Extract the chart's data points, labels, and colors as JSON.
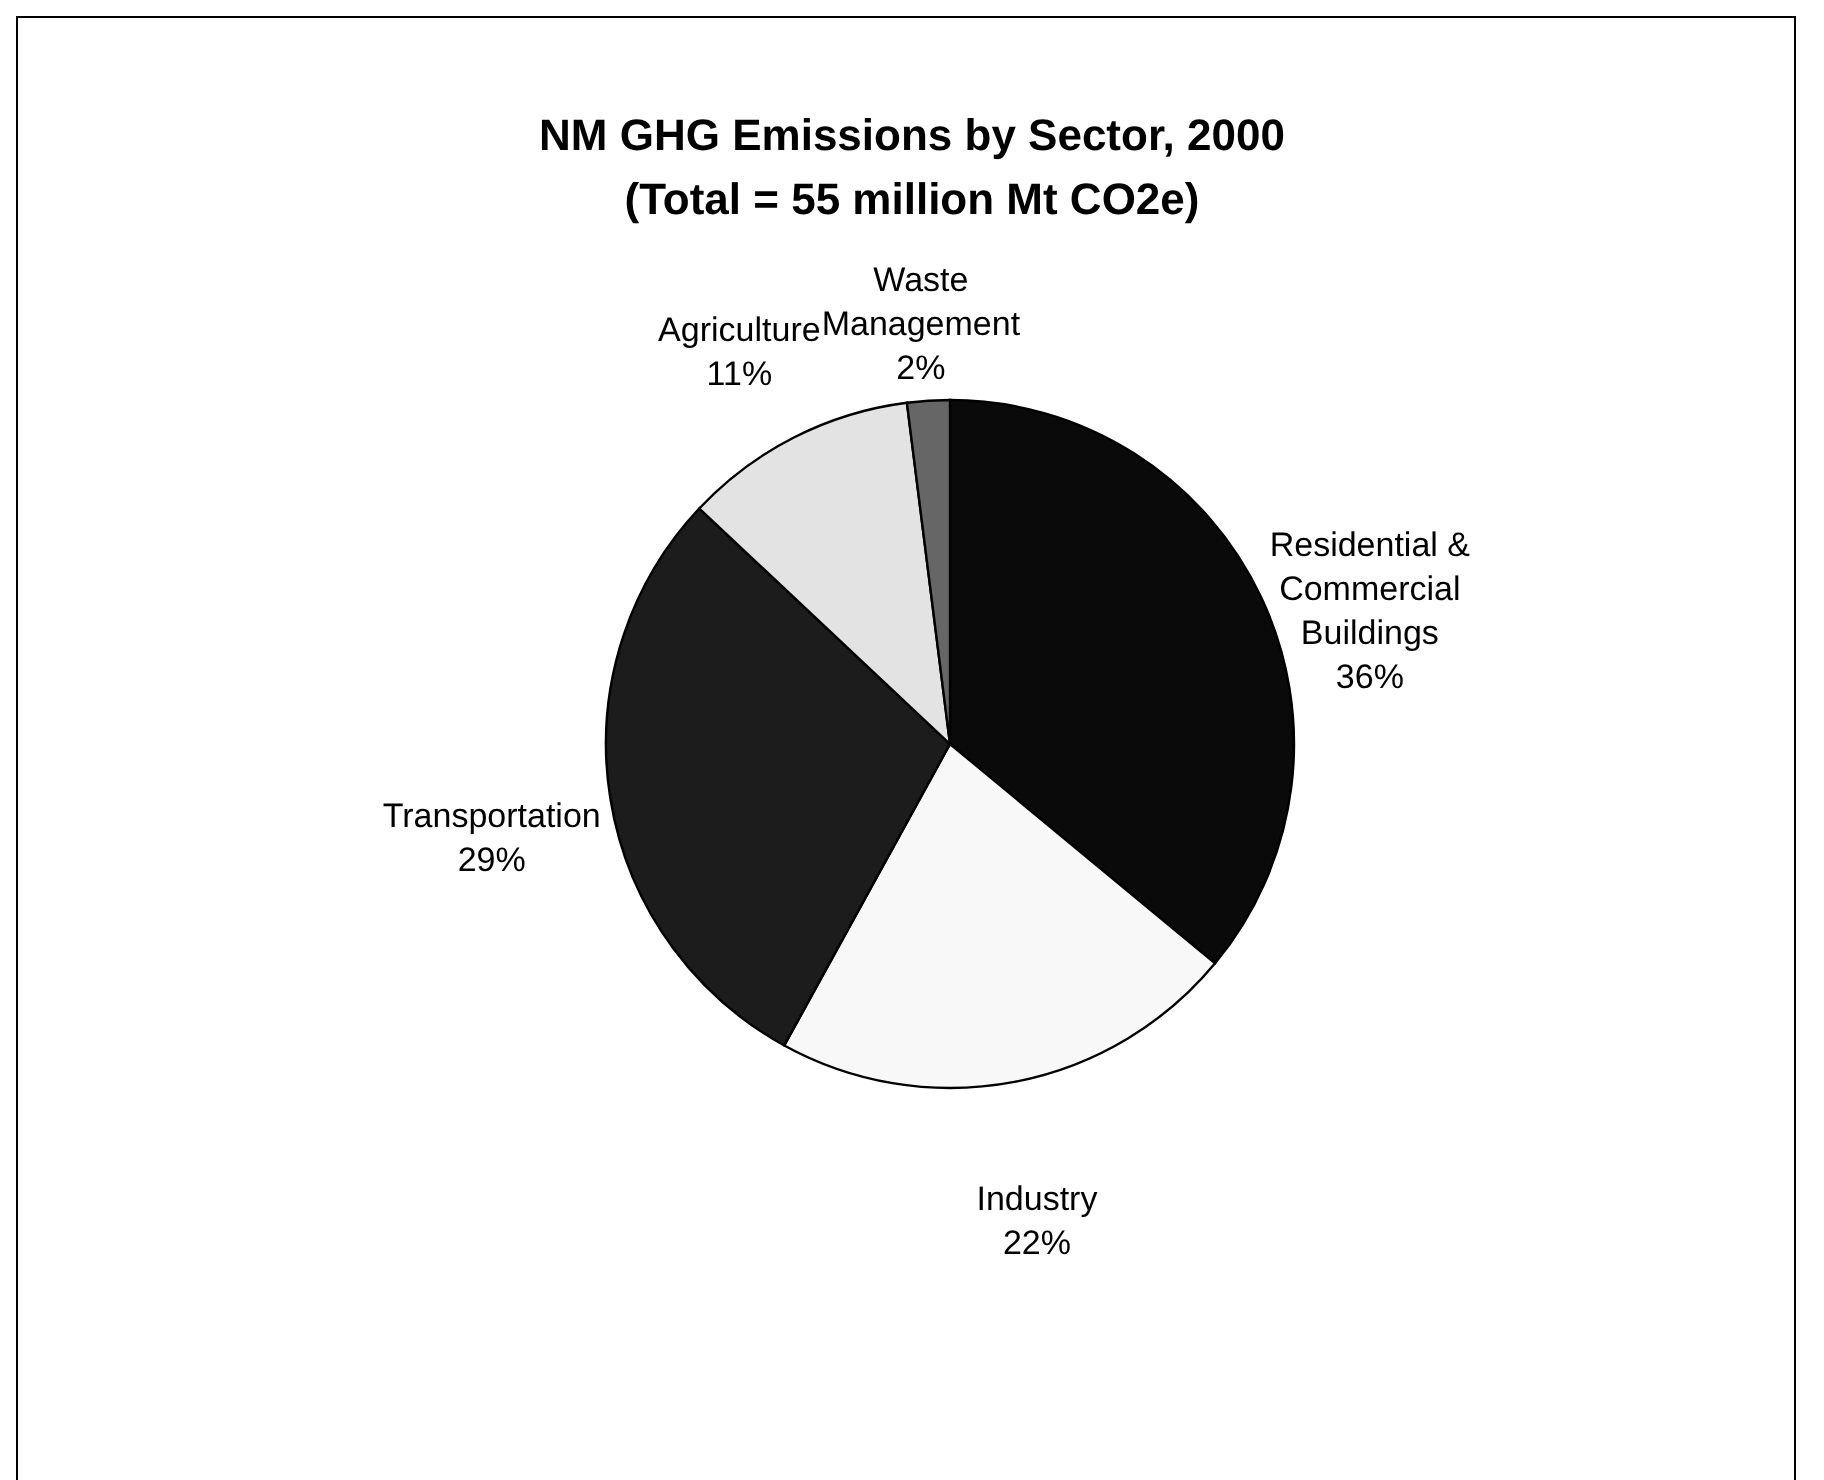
{
  "chart_data": {
    "type": "pie",
    "title": "NM GHG Emissions by Sector, 2000",
    "subtitle": "(Total = 55 million Mt CO2e)",
    "categories": [
      "Residential & Commercial Buildings",
      "Industry",
      "Transportation",
      "Agriculture",
      "Waste Management"
    ],
    "values": [
      36,
      22,
      29,
      11,
      2
    ],
    "value_labels": [
      "36%",
      "22%",
      "29%",
      "11%",
      "2%"
    ],
    "colors": [
      "#0a0a0a",
      "#f8f8f8",
      "#1c1c1c",
      "#e3e3e3",
      "#666666"
    ],
    "legend": false
  }
}
